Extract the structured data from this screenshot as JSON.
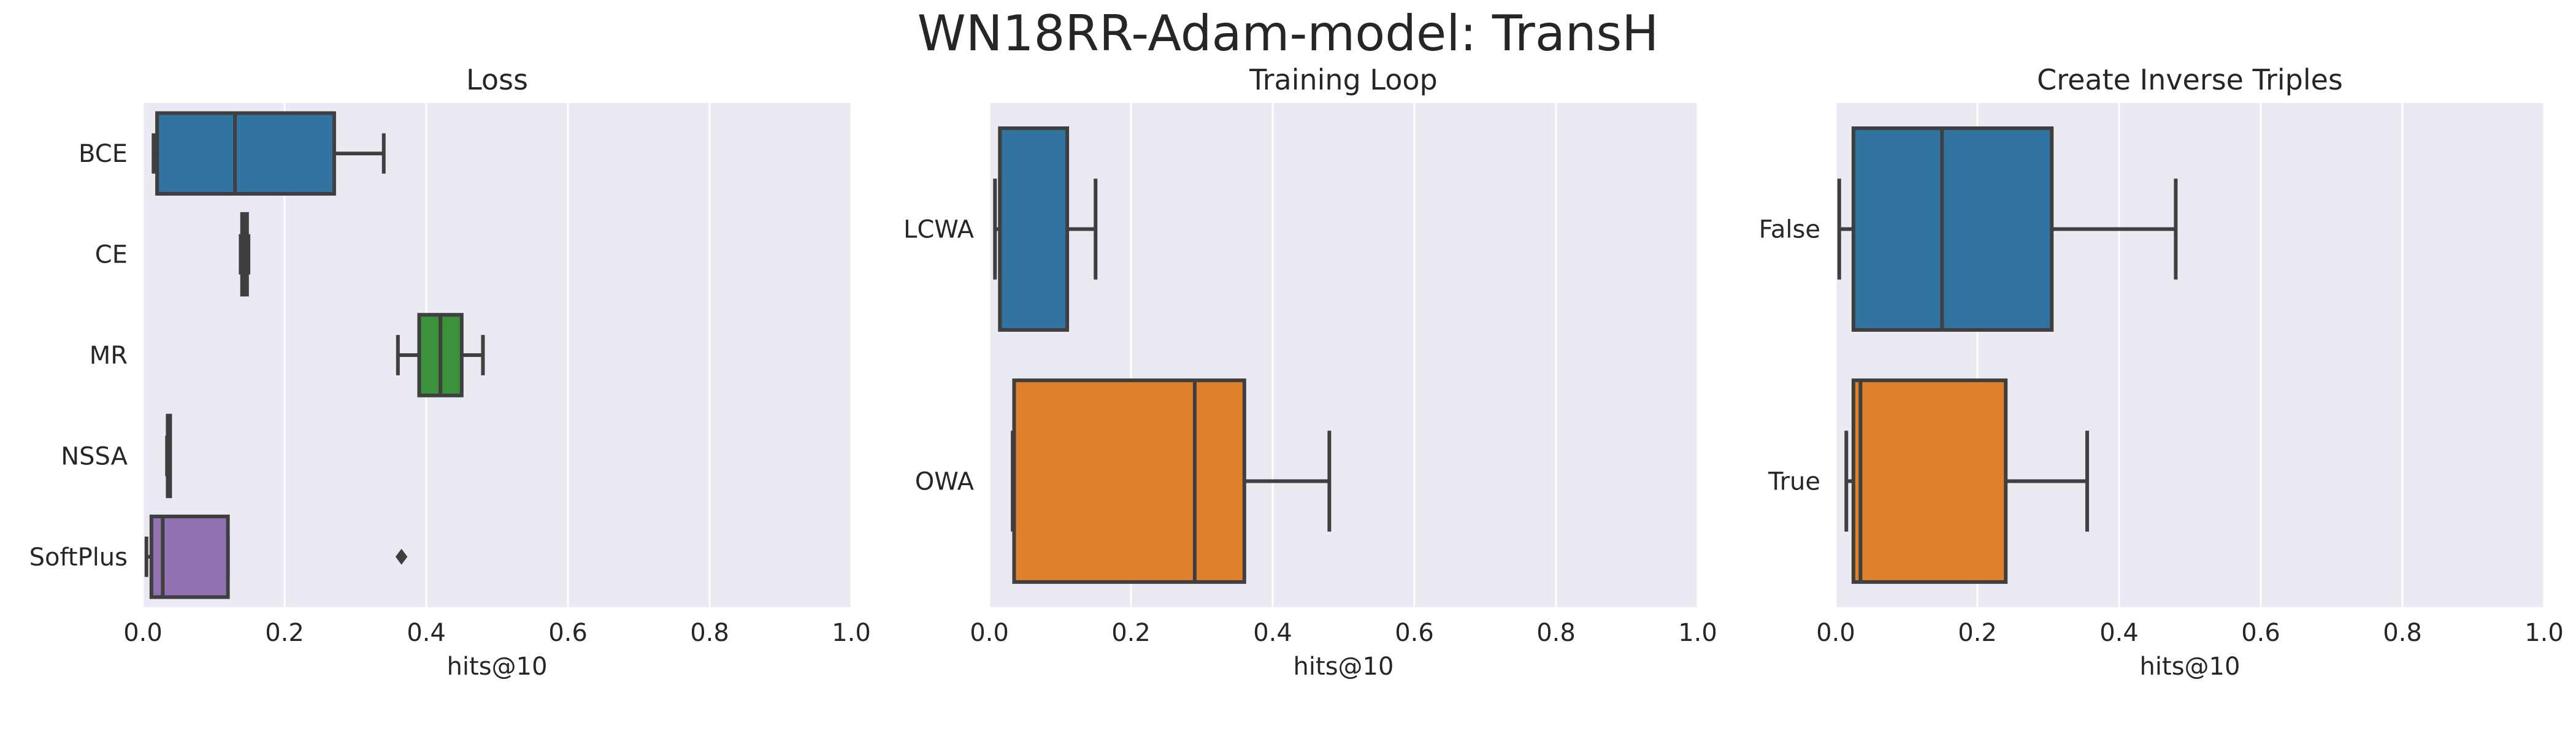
{
  "figure": {
    "title": "WN18RR-Adam-model: TransH"
  },
  "chart_data": [
    {
      "type": "box",
      "orientation": "horizontal",
      "title": "Loss",
      "xlabel": "hits@10",
      "ylabel": "",
      "xlim": [
        0,
        1.0
      ],
      "xticks": [
        "0.0",
        "0.2",
        "0.4",
        "0.6",
        "0.8",
        "1.0"
      ],
      "grid": true,
      "categories": [
        "BCE",
        "CE",
        "MR",
        "NSSA",
        "SoftPlus"
      ],
      "colors": [
        "#3274a1",
        "#3274a1",
        "#3a923a",
        "#3274a1",
        "#9372b2"
      ],
      "boxes": [
        {
          "category": "BCE",
          "whislo": 0.015,
          "q1": 0.02,
          "med": 0.13,
          "q3": 0.27,
          "whishi": 0.34,
          "fliers": []
        },
        {
          "category": "CE",
          "whislo": 0.138,
          "q1": 0.14,
          "med": 0.143,
          "q3": 0.147,
          "whishi": 0.149,
          "fliers": []
        },
        {
          "category": "MR",
          "whislo": 0.36,
          "q1": 0.39,
          "med": 0.42,
          "q3": 0.45,
          "whishi": 0.48,
          "fliers": []
        },
        {
          "category": "NSSA",
          "whislo": 0.034,
          "q1": 0.035,
          "med": 0.036,
          "q3": 0.037,
          "whishi": 0.038,
          "fliers": []
        },
        {
          "category": "SoftPlus",
          "whislo": 0.005,
          "q1": 0.012,
          "med": 0.028,
          "q3": 0.12,
          "whishi": 0.12,
          "fliers": [
            0.365
          ]
        }
      ]
    },
    {
      "type": "box",
      "orientation": "horizontal",
      "title": "Training Loop",
      "xlabel": "hits@10",
      "ylabel": "",
      "xlim": [
        0,
        1.0
      ],
      "xticks": [
        "0.0",
        "0.2",
        "0.4",
        "0.6",
        "0.8",
        "1.0"
      ],
      "grid": true,
      "categories": [
        "LCWA",
        "OWA"
      ],
      "colors": [
        "#3274a1",
        "#e1812c"
      ],
      "boxes": [
        {
          "category": "LCWA",
          "whislo": 0.008,
          "q1": 0.015,
          "med": 0.015,
          "q3": 0.11,
          "whishi": 0.15,
          "fliers": []
        },
        {
          "category": "OWA",
          "whislo": 0.033,
          "q1": 0.035,
          "med": 0.29,
          "q3": 0.36,
          "whishi": 0.48,
          "fliers": []
        }
      ]
    },
    {
      "type": "box",
      "orientation": "horizontal",
      "title": "Create Inverse Triples",
      "xlabel": "hits@10",
      "ylabel": "",
      "xlim": [
        0,
        1.0
      ],
      "xticks": [
        "0.0",
        "0.2",
        "0.4",
        "0.6",
        "0.8",
        "1.0"
      ],
      "grid": true,
      "categories": [
        "False",
        "True"
      ],
      "colors": [
        "#3274a1",
        "#e1812c"
      ],
      "boxes": [
        {
          "category": "False",
          "whislo": 0.005,
          "q1": 0.025,
          "med": 0.15,
          "q3": 0.305,
          "whishi": 0.48,
          "fliers": []
        },
        {
          "category": "True",
          "whislo": 0.015,
          "q1": 0.025,
          "med": 0.035,
          "q3": 0.24,
          "whishi": 0.355,
          "fliers": []
        }
      ]
    }
  ]
}
